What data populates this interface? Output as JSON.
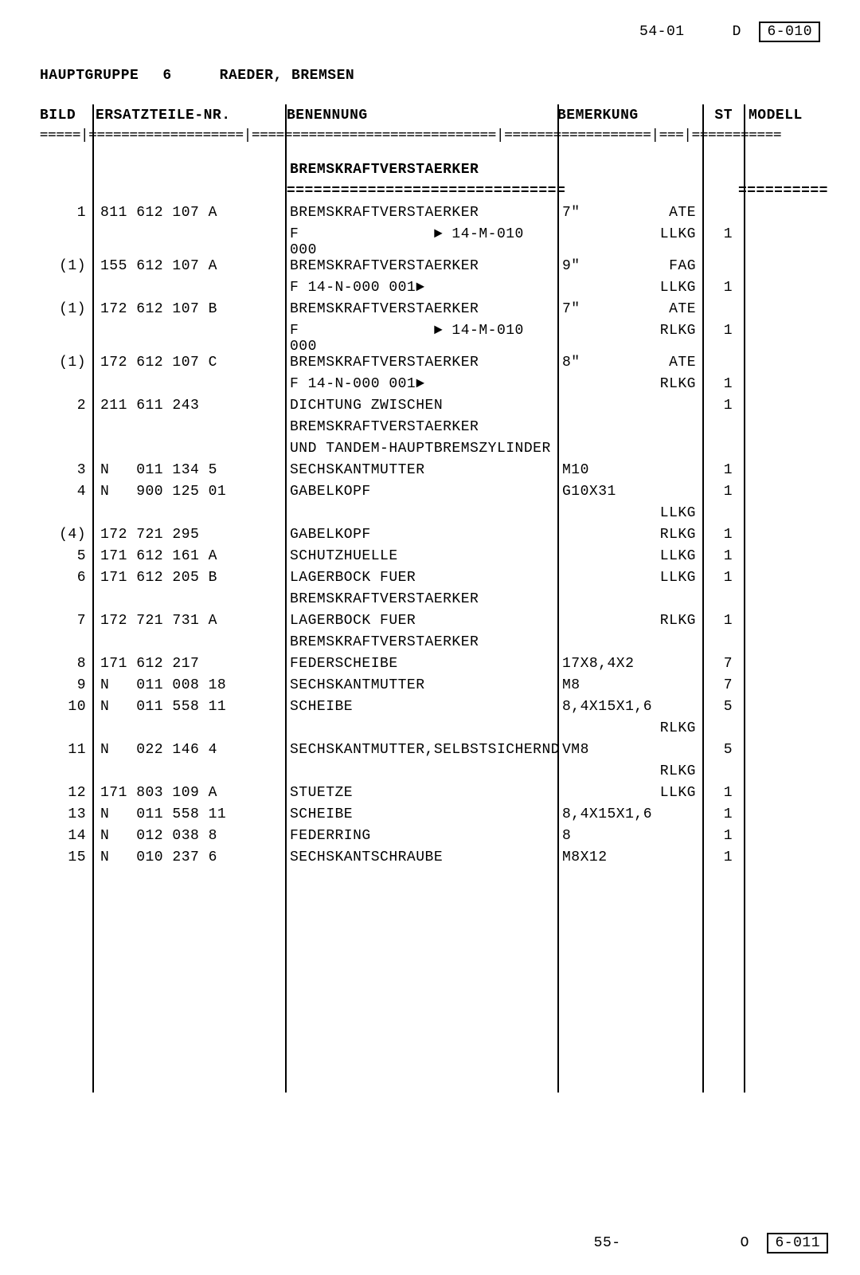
{
  "header": {
    "page_top": "54-01",
    "code_letter_top": "D",
    "code_box_top": "6-010",
    "hauptgruppe_label": "HAUPTGRUPPE",
    "hauptgruppe_num": "6",
    "section_title": "RAEDER, BREMSEN"
  },
  "columns": {
    "bild": "BILD",
    "partno": "ERSATZTEILE-NR.",
    "benennung": "BENENNUNG",
    "bemerkung": "BEMERKUNG",
    "st": "ST",
    "modell": "MODELL"
  },
  "divider": "=====|===================|==============================|==================|===|===========",
  "section_heading": "BREMSKRAFTVERSTAERKER",
  "section_divider": "===============================",
  "rows": [
    {
      "bild": "1",
      "partno": "811 612 107 A",
      "ben": "BREMSKRAFTVERSTAERKER",
      "bem1": "7\"",
      "bem2": "ATE",
      "st": "",
      "mod": ""
    },
    {
      "bild": "",
      "partno": "",
      "ben": "F               ► 14-M-010 000",
      "bem1": "",
      "bem2": "LLKG",
      "st": "1",
      "mod": ""
    },
    {
      "bild": "(1)",
      "partno": "155 612 107 A",
      "ben": "BREMSKRAFTVERSTAERKER",
      "bem1": "9\"",
      "bem2": "FAG",
      "st": "",
      "mod": ""
    },
    {
      "bild": "",
      "partno": "",
      "ben": "F 14-N-000 001►",
      "bem1": "",
      "bem2": "LLKG",
      "st": "1",
      "mod": ""
    },
    {
      "bild": "(1)",
      "partno": "172 612 107 B",
      "ben": "BREMSKRAFTVERSTAERKER",
      "bem1": "7\"",
      "bem2": "ATE",
      "st": "",
      "mod": ""
    },
    {
      "bild": "",
      "partno": "",
      "ben": "F               ► 14-M-010 000",
      "bem1": "",
      "bem2": "RLKG",
      "st": "1",
      "mod": ""
    },
    {
      "bild": "(1)",
      "partno": "172 612 107 C",
      "ben": "BREMSKRAFTVERSTAERKER",
      "bem1": "8\"",
      "bem2": "ATE",
      "st": "",
      "mod": ""
    },
    {
      "bild": "",
      "partno": "",
      "ben": "F 14-N-000 001►",
      "bem1": "",
      "bem2": "RLKG",
      "st": "1",
      "mod": ""
    },
    {
      "bild": "2",
      "partno": "211 611 243",
      "ben": "DICHTUNG ZWISCHEN",
      "bem1": "",
      "bem2": "",
      "st": "1",
      "mod": ""
    },
    {
      "bild": "",
      "partno": "",
      "ben": "BREMSKRAFTVERSTAERKER",
      "bem1": "",
      "bem2": "",
      "st": "",
      "mod": ""
    },
    {
      "bild": "",
      "partno": "",
      "ben": "UND TANDEM-HAUPTBREMSZYLINDER",
      "bem1": "",
      "bem2": "",
      "st": "",
      "mod": ""
    },
    {
      "bild": "3",
      "partno": "N   011 134 5",
      "ben": "SECHSKANTMUTTER",
      "bem1": "M10",
      "bem2": "",
      "st": "1",
      "mod": ""
    },
    {
      "bild": "4",
      "partno": "N   900 125 01",
      "ben": "GABELKOPF",
      "bem1": "G10X31",
      "bem2": "",
      "st": "1",
      "mod": ""
    },
    {
      "bild": "",
      "partno": "",
      "ben": "",
      "bem1": "",
      "bem2": "LLKG",
      "st": "",
      "mod": ""
    },
    {
      "bild": "(4)",
      "partno": "172 721 295",
      "ben": "GABELKOPF",
      "bem1": "",
      "bem2": "RLKG",
      "st": "1",
      "mod": ""
    },
    {
      "bild": "5",
      "partno": "171 612 161 A",
      "ben": "SCHUTZHUELLE",
      "bem1": "",
      "bem2": "LLKG",
      "st": "1",
      "mod": ""
    },
    {
      "bild": "6",
      "partno": "171 612 205 B",
      "ben": "LAGERBOCK FUER",
      "bem1": "",
      "bem2": "LLKG",
      "st": "1",
      "mod": ""
    },
    {
      "bild": "",
      "partno": "",
      "ben": "BREMSKRAFTVERSTAERKER",
      "bem1": "",
      "bem2": "",
      "st": "",
      "mod": ""
    },
    {
      "bild": "7",
      "partno": "172 721 731 A",
      "ben": "LAGERBOCK FUER",
      "bem1": "",
      "bem2": "RLKG",
      "st": "1",
      "mod": ""
    },
    {
      "bild": "",
      "partno": "",
      "ben": "BREMSKRAFTVERSTAERKER",
      "bem1": "",
      "bem2": "",
      "st": "",
      "mod": ""
    },
    {
      "bild": "8",
      "partno": "171 612 217",
      "ben": "FEDERSCHEIBE",
      "bem1": "17X8,4X2",
      "bem2": "",
      "st": "7",
      "mod": ""
    },
    {
      "bild": "9",
      "partno": "N   011 008 18",
      "ben": "SECHSKANTMUTTER",
      "bem1": "M8",
      "bem2": "",
      "st": "7",
      "mod": ""
    },
    {
      "bild": "10",
      "partno": "N   011 558 11",
      "ben": "SCHEIBE",
      "bem1": "8,4X15X1,6",
      "bem2": "",
      "st": "5",
      "mod": ""
    },
    {
      "bild": "",
      "partno": "",
      "ben": "",
      "bem1": "",
      "bem2": "RLKG",
      "st": "",
      "mod": ""
    },
    {
      "bild": "11",
      "partno": "N   022 146 4",
      "ben": "SECHSKANTMUTTER,SELBSTSICHERND",
      "bem1": "VM8",
      "bem2": "",
      "st": "5",
      "mod": ""
    },
    {
      "bild": "",
      "partno": "",
      "ben": "",
      "bem1": "",
      "bem2": "RLKG",
      "st": "",
      "mod": ""
    },
    {
      "bild": "12",
      "partno": "171 803 109 A",
      "ben": "STUETZE",
      "bem1": "",
      "bem2": "LLKG",
      "st": "1",
      "mod": ""
    },
    {
      "bild": "13",
      "partno": "N   011 558 11",
      "ben": "SCHEIBE",
      "bem1": "8,4X15X1,6",
      "bem2": "",
      "st": "1",
      "mod": ""
    },
    {
      "bild": "14",
      "partno": "N   012 038 8",
      "ben": "FEDERRING",
      "bem1": "8",
      "bem2": "",
      "st": "1",
      "mod": ""
    },
    {
      "bild": "15",
      "partno": "N   010 237 6",
      "ben": "SECHSKANTSCHRAUBE",
      "bem1": "M8X12",
      "bem2": "",
      "st": "1",
      "mod": ""
    }
  ],
  "footer": {
    "page_bottom": "55-",
    "code_letter_bottom": "O",
    "code_box_bottom": "6-011"
  }
}
